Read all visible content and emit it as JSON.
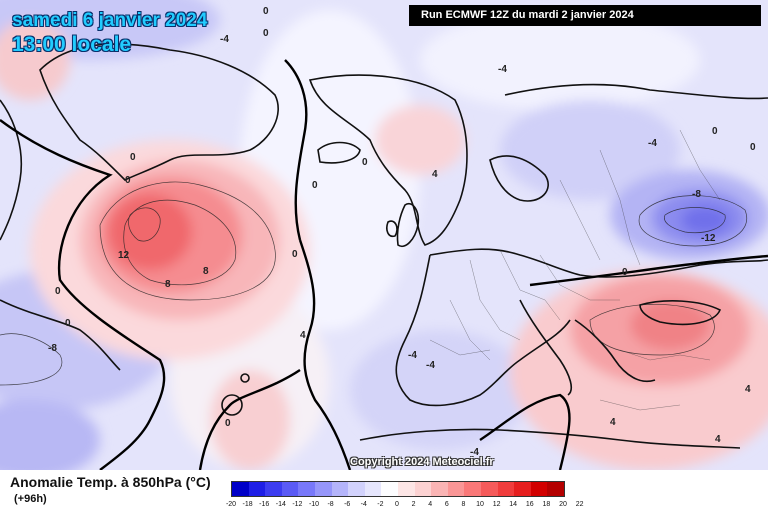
{
  "header": {
    "date_line": "samedi 6 janvier 2024",
    "time_line": "13:00 locale",
    "run_line": "Run ECMWF 12Z du mardi 2 janvier 2024"
  },
  "copyright": "Copyright 2024 Meteociel.fr",
  "footer": {
    "title": "Anomalie Temp. à 850hPa (°C)",
    "subtitle": "(+96h)"
  },
  "scale": {
    "colors": [
      "#0000c8",
      "#1e1ee6",
      "#3c3cf0",
      "#5a5af5",
      "#7878fa",
      "#9696fa",
      "#b4b4fa",
      "#d2d2fc",
      "#e6e6fd",
      "#fdfdff",
      "#fde6e6",
      "#fcd2d2",
      "#fab4b4",
      "#fa9696",
      "#fa7878",
      "#f55a5a",
      "#f03c3c",
      "#e61e1e",
      "#d20000",
      "#b40000"
    ],
    "ticks": [
      "-20",
      "-18",
      "-16",
      "-14",
      "-12",
      "-10",
      "-8",
      "-6",
      "-4",
      "-2",
      "0",
      "2",
      "4",
      "6",
      "8",
      "10",
      "12",
      "14",
      "16",
      "18",
      "20",
      "22"
    ]
  },
  "map_labels": [
    {
      "text": "12"
    },
    {
      "text": "8"
    },
    {
      "text": "8"
    },
    {
      "text": "0"
    },
    {
      "text": "0"
    },
    {
      "text": "0"
    },
    {
      "text": "0"
    },
    {
      "text": "0"
    },
    {
      "text": "0"
    },
    {
      "text": "0"
    },
    {
      "text": "0"
    },
    {
      "text": "0"
    },
    {
      "text": "-4"
    },
    {
      "text": "-4"
    },
    {
      "text": "-4"
    },
    {
      "text": "-8"
    },
    {
      "text": "-12"
    },
    {
      "text": "-8"
    },
    {
      "text": "-4"
    },
    {
      "text": "4"
    },
    {
      "text": "4"
    },
    {
      "text": "4"
    },
    {
      "text": "4"
    },
    {
      "text": "4"
    },
    {
      "text": "-4"
    },
    {
      "text": "0"
    },
    {
      "text": "-4"
    },
    {
      "text": "0"
    },
    {
      "text": "0"
    },
    {
      "text": "0"
    }
  ]
}
